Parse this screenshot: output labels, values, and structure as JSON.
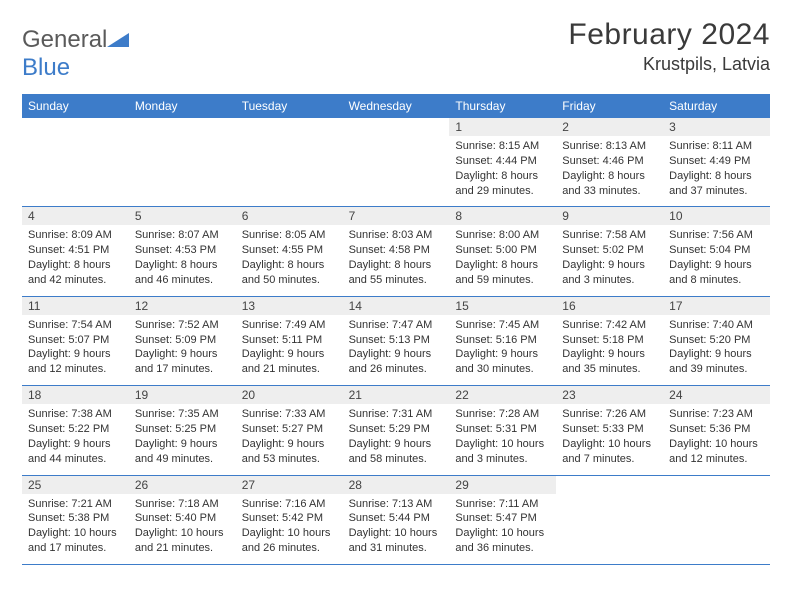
{
  "brand": {
    "part1": "General",
    "part2": "Blue"
  },
  "title": "February 2024",
  "subtitle": "Krustpils, Latvia",
  "colors": {
    "header_bg": "#3d7cc9",
    "daynum_bg": "#eeeeee",
    "text": "#333333",
    "week_border": "#3d7cc9"
  },
  "weekdays": [
    "Sunday",
    "Monday",
    "Tuesday",
    "Wednesday",
    "Thursday",
    "Friday",
    "Saturday"
  ],
  "weeks": [
    [
      null,
      null,
      null,
      null,
      {
        "n": "1",
        "sr": "Sunrise: 8:15 AM",
        "ss": "Sunset: 4:44 PM",
        "d1": "Daylight: 8 hours",
        "d2": "and 29 minutes."
      },
      {
        "n": "2",
        "sr": "Sunrise: 8:13 AM",
        "ss": "Sunset: 4:46 PM",
        "d1": "Daylight: 8 hours",
        "d2": "and 33 minutes."
      },
      {
        "n": "3",
        "sr": "Sunrise: 8:11 AM",
        "ss": "Sunset: 4:49 PM",
        "d1": "Daylight: 8 hours",
        "d2": "and 37 minutes."
      }
    ],
    [
      {
        "n": "4",
        "sr": "Sunrise: 8:09 AM",
        "ss": "Sunset: 4:51 PM",
        "d1": "Daylight: 8 hours",
        "d2": "and 42 minutes."
      },
      {
        "n": "5",
        "sr": "Sunrise: 8:07 AM",
        "ss": "Sunset: 4:53 PM",
        "d1": "Daylight: 8 hours",
        "d2": "and 46 minutes."
      },
      {
        "n": "6",
        "sr": "Sunrise: 8:05 AM",
        "ss": "Sunset: 4:55 PM",
        "d1": "Daylight: 8 hours",
        "d2": "and 50 minutes."
      },
      {
        "n": "7",
        "sr": "Sunrise: 8:03 AM",
        "ss": "Sunset: 4:58 PM",
        "d1": "Daylight: 8 hours",
        "d2": "and 55 minutes."
      },
      {
        "n": "8",
        "sr": "Sunrise: 8:00 AM",
        "ss": "Sunset: 5:00 PM",
        "d1": "Daylight: 8 hours",
        "d2": "and 59 minutes."
      },
      {
        "n": "9",
        "sr": "Sunrise: 7:58 AM",
        "ss": "Sunset: 5:02 PM",
        "d1": "Daylight: 9 hours",
        "d2": "and 3 minutes."
      },
      {
        "n": "10",
        "sr": "Sunrise: 7:56 AM",
        "ss": "Sunset: 5:04 PM",
        "d1": "Daylight: 9 hours",
        "d2": "and 8 minutes."
      }
    ],
    [
      {
        "n": "11",
        "sr": "Sunrise: 7:54 AM",
        "ss": "Sunset: 5:07 PM",
        "d1": "Daylight: 9 hours",
        "d2": "and 12 minutes."
      },
      {
        "n": "12",
        "sr": "Sunrise: 7:52 AM",
        "ss": "Sunset: 5:09 PM",
        "d1": "Daylight: 9 hours",
        "d2": "and 17 minutes."
      },
      {
        "n": "13",
        "sr": "Sunrise: 7:49 AM",
        "ss": "Sunset: 5:11 PM",
        "d1": "Daylight: 9 hours",
        "d2": "and 21 minutes."
      },
      {
        "n": "14",
        "sr": "Sunrise: 7:47 AM",
        "ss": "Sunset: 5:13 PM",
        "d1": "Daylight: 9 hours",
        "d2": "and 26 minutes."
      },
      {
        "n": "15",
        "sr": "Sunrise: 7:45 AM",
        "ss": "Sunset: 5:16 PM",
        "d1": "Daylight: 9 hours",
        "d2": "and 30 minutes."
      },
      {
        "n": "16",
        "sr": "Sunrise: 7:42 AM",
        "ss": "Sunset: 5:18 PM",
        "d1": "Daylight: 9 hours",
        "d2": "and 35 minutes."
      },
      {
        "n": "17",
        "sr": "Sunrise: 7:40 AM",
        "ss": "Sunset: 5:20 PM",
        "d1": "Daylight: 9 hours",
        "d2": "and 39 minutes."
      }
    ],
    [
      {
        "n": "18",
        "sr": "Sunrise: 7:38 AM",
        "ss": "Sunset: 5:22 PM",
        "d1": "Daylight: 9 hours",
        "d2": "and 44 minutes."
      },
      {
        "n": "19",
        "sr": "Sunrise: 7:35 AM",
        "ss": "Sunset: 5:25 PM",
        "d1": "Daylight: 9 hours",
        "d2": "and 49 minutes."
      },
      {
        "n": "20",
        "sr": "Sunrise: 7:33 AM",
        "ss": "Sunset: 5:27 PM",
        "d1": "Daylight: 9 hours",
        "d2": "and 53 minutes."
      },
      {
        "n": "21",
        "sr": "Sunrise: 7:31 AM",
        "ss": "Sunset: 5:29 PM",
        "d1": "Daylight: 9 hours",
        "d2": "and 58 minutes."
      },
      {
        "n": "22",
        "sr": "Sunrise: 7:28 AM",
        "ss": "Sunset: 5:31 PM",
        "d1": "Daylight: 10 hours",
        "d2": "and 3 minutes."
      },
      {
        "n": "23",
        "sr": "Sunrise: 7:26 AM",
        "ss": "Sunset: 5:33 PM",
        "d1": "Daylight: 10 hours",
        "d2": "and 7 minutes."
      },
      {
        "n": "24",
        "sr": "Sunrise: 7:23 AM",
        "ss": "Sunset: 5:36 PM",
        "d1": "Daylight: 10 hours",
        "d2": "and 12 minutes."
      }
    ],
    [
      {
        "n": "25",
        "sr": "Sunrise: 7:21 AM",
        "ss": "Sunset: 5:38 PM",
        "d1": "Daylight: 10 hours",
        "d2": "and 17 minutes."
      },
      {
        "n": "26",
        "sr": "Sunrise: 7:18 AM",
        "ss": "Sunset: 5:40 PM",
        "d1": "Daylight: 10 hours",
        "d2": "and 21 minutes."
      },
      {
        "n": "27",
        "sr": "Sunrise: 7:16 AM",
        "ss": "Sunset: 5:42 PM",
        "d1": "Daylight: 10 hours",
        "d2": "and 26 minutes."
      },
      {
        "n": "28",
        "sr": "Sunrise: 7:13 AM",
        "ss": "Sunset: 5:44 PM",
        "d1": "Daylight: 10 hours",
        "d2": "and 31 minutes."
      },
      {
        "n": "29",
        "sr": "Sunrise: 7:11 AM",
        "ss": "Sunset: 5:47 PM",
        "d1": "Daylight: 10 hours",
        "d2": "and 36 minutes."
      },
      null,
      null
    ]
  ]
}
